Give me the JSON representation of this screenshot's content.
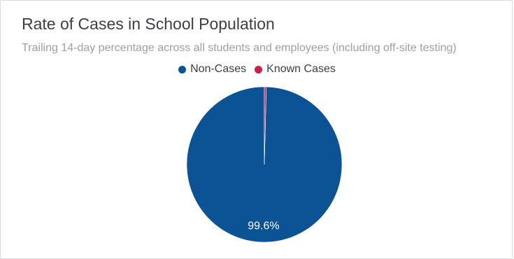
{
  "chart_data": {
    "type": "pie",
    "title": "Rate of Cases in School Population",
    "subtitle": "Trailing 14-day percentage across all students and employees (including off-site testing)",
    "legend_position": "top-center",
    "slices": [
      {
        "name": "Non-Cases",
        "value": 99.6,
        "label": "99.6%",
        "color": "#0b5394"
      },
      {
        "name": "Known Cases",
        "value": 0.4,
        "label": "",
        "color": "#cc1f4e"
      }
    ]
  }
}
